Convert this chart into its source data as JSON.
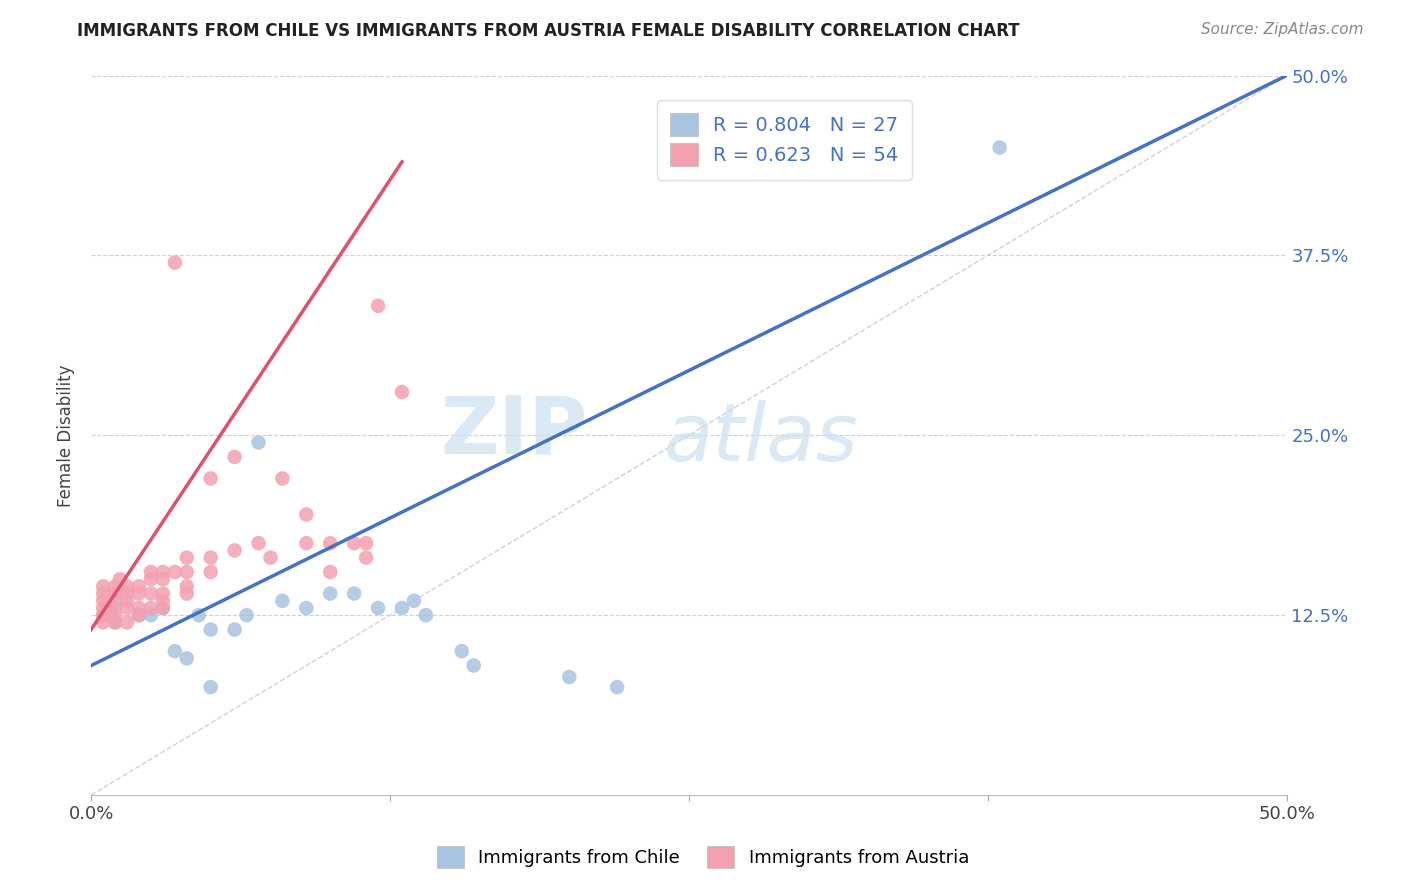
{
  "title": "IMMIGRANTS FROM CHILE VS IMMIGRANTS FROM AUSTRIA FEMALE DISABILITY CORRELATION CHART",
  "source": "Source: ZipAtlas.com",
  "ylabel": "Female Disability",
  "xlim": [
    0,
    0.5
  ],
  "ylim": [
    0,
    0.5
  ],
  "xticks": [
    0.0,
    0.125,
    0.25,
    0.375,
    0.5
  ],
  "yticks": [
    0.0,
    0.125,
    0.25,
    0.375,
    0.5
  ],
  "xtick_labels": [
    "0.0%",
    "",
    "",
    "",
    "50.0%"
  ],
  "ytick_labels": [
    "",
    "12.5%",
    "25.0%",
    "37.5%",
    "50.0%"
  ],
  "grid_color": "#cccccc",
  "background_color": "#ffffff",
  "chile_color": "#a8c4e0",
  "austria_color": "#f4a0b0",
  "chile_line_color": "#4472c4",
  "austria_line_color": "#e05070",
  "R_chile": 0.804,
  "N_chile": 27,
  "R_austria": 0.623,
  "N_austria": 54,
  "watermark_zip": "ZIP",
  "watermark_atlas": "atlas",
  "legend_label_chile": "Immigrants from Chile",
  "legend_label_austria": "Immigrants from Austria",
  "chile_line_x0": 0.0,
  "chile_line_y0": 0.09,
  "chile_line_x1": 0.5,
  "chile_line_y1": 0.5,
  "austria_line_x0": 0.0,
  "austria_line_y0": 0.115,
  "austria_line_x1": 0.13,
  "austria_line_y1": 0.44,
  "chile_scatter_x": [
    0.005,
    0.01,
    0.01,
    0.02,
    0.025,
    0.03,
    0.035,
    0.04,
    0.045,
    0.05,
    0.06,
    0.065,
    0.07,
    0.08,
    0.09,
    0.1,
    0.11,
    0.12,
    0.13,
    0.135,
    0.14,
    0.155,
    0.16,
    0.2,
    0.22,
    0.38,
    0.05
  ],
  "chile_scatter_y": [
    0.125,
    0.135,
    0.12,
    0.125,
    0.125,
    0.13,
    0.1,
    0.095,
    0.125,
    0.115,
    0.115,
    0.125,
    0.245,
    0.135,
    0.13,
    0.14,
    0.14,
    0.13,
    0.13,
    0.135,
    0.125,
    0.1,
    0.09,
    0.082,
    0.075,
    0.45,
    0.075
  ],
  "austria_scatter_x": [
    0.005,
    0.005,
    0.005,
    0.005,
    0.005,
    0.005,
    0.007,
    0.01,
    0.01,
    0.01,
    0.01,
    0.01,
    0.012,
    0.015,
    0.015,
    0.015,
    0.015,
    0.015,
    0.02,
    0.02,
    0.02,
    0.02,
    0.025,
    0.025,
    0.025,
    0.025,
    0.03,
    0.03,
    0.03,
    0.03,
    0.03,
    0.035,
    0.04,
    0.04,
    0.04,
    0.04,
    0.05,
    0.05,
    0.05,
    0.06,
    0.06,
    0.07,
    0.075,
    0.08,
    0.09,
    0.09,
    0.1,
    0.1,
    0.11,
    0.115,
    0.115,
    0.12,
    0.13,
    0.035
  ],
  "austria_scatter_y": [
    0.12,
    0.125,
    0.13,
    0.135,
    0.14,
    0.145,
    0.13,
    0.12,
    0.125,
    0.13,
    0.14,
    0.145,
    0.15,
    0.12,
    0.13,
    0.135,
    0.14,
    0.145,
    0.125,
    0.13,
    0.14,
    0.145,
    0.13,
    0.14,
    0.15,
    0.155,
    0.13,
    0.135,
    0.14,
    0.15,
    0.155,
    0.155,
    0.14,
    0.145,
    0.155,
    0.165,
    0.155,
    0.165,
    0.22,
    0.17,
    0.235,
    0.175,
    0.165,
    0.22,
    0.175,
    0.195,
    0.155,
    0.175,
    0.175,
    0.165,
    0.175,
    0.34,
    0.28,
    0.37
  ]
}
